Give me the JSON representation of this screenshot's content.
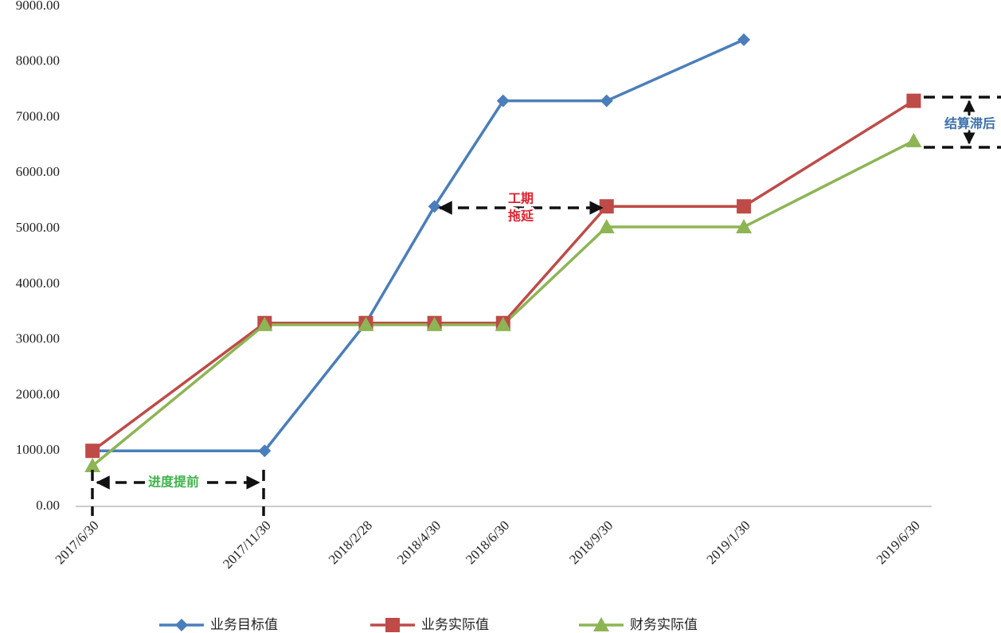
{
  "chart_data": {
    "type": "line",
    "x": [
      "2017/6/30",
      "2017/11/30",
      "2018/2/28",
      "2018/4/30",
      "2018/6/30",
      "2018/9/30",
      "2019/1/30",
      "2019/6/30"
    ],
    "xlim": [
      "2017/6/15",
      "2019/7/16"
    ],
    "ylim": [
      0,
      9000
    ],
    "yticks": [
      {
        "value": 0,
        "label": "0.00"
      },
      {
        "value": 1000,
        "label": "1000.00"
      },
      {
        "value": 2000,
        "label": "2000.00"
      },
      {
        "value": 3000,
        "label": "3000.00"
      },
      {
        "value": 4000,
        "label": "4000.00"
      },
      {
        "value": 5000,
        "label": "5000.00"
      },
      {
        "value": 6000,
        "label": "6000.00"
      },
      {
        "value": 7000,
        "label": "7000.00"
      },
      {
        "value": 8000,
        "label": "8000.00"
      },
      {
        "value": 9000,
        "label": "9000.00"
      }
    ],
    "series": [
      {
        "name": "业务目标值",
        "color": "#4a7ebb",
        "marker": "diamond",
        "values": [
          1000,
          1000,
          3300,
          5400,
          7300,
          7300,
          8400,
          null
        ]
      },
      {
        "name": "业务实际值",
        "color": "#be4b48",
        "marker": "square",
        "values": [
          1000,
          3300,
          3300,
          3300,
          3300,
          5400,
          5400,
          7300
        ]
      },
      {
        "name": "财务实际值",
        "color": "#8db554",
        "marker": "triangle",
        "values": [
          730,
          3270,
          3270,
          3270,
          3270,
          5030,
          5030,
          6580
        ]
      }
    ],
    "annotations": [
      {
        "lines": [
          "进度提前"
        ],
        "color": "#3cb34a"
      },
      {
        "lines": [
          "工期",
          "拖延"
        ],
        "color": "#e0212e"
      },
      {
        "lines": [
          "结算滞后"
        ],
        "color": "#3a6fa8"
      }
    ]
  }
}
